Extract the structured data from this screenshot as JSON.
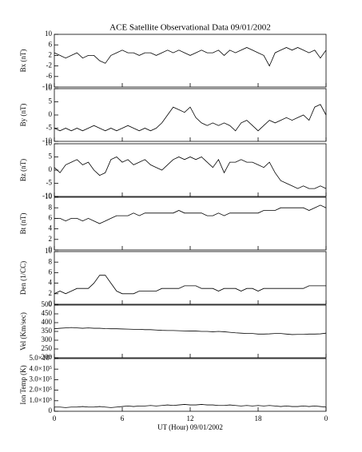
{
  "chart_data": [
    {
      "type": "line",
      "title": "ACE Satellite Observational Data  09/01/2002",
      "ylabel": "Bx (nT)",
      "color": "#000000",
      "x": [
        0,
        0.5,
        1,
        1.5,
        2,
        2.5,
        3,
        3.5,
        4,
        4.5,
        5,
        5.5,
        6,
        6.5,
        7,
        7.5,
        8,
        8.5,
        9,
        9.5,
        10,
        10.5,
        11,
        11.5,
        12,
        12.5,
        13,
        13.5,
        14,
        14.5,
        15,
        15.5,
        16,
        16.5,
        17,
        17.5,
        18,
        18.5,
        19,
        19.5,
        20,
        20.5,
        21,
        21.5,
        22,
        22.5,
        23,
        23.5,
        24
      ],
      "values": [
        3,
        2,
        1,
        2,
        3,
        1,
        2,
        2,
        0,
        -1,
        2,
        3,
        4,
        3,
        3,
        2,
        3,
        3,
        2,
        3,
        4,
        3,
        4,
        3,
        2,
        3,
        4,
        3,
        3,
        4,
        2,
        4,
        3,
        4,
        5,
        4,
        3,
        2,
        -2,
        3,
        4,
        5,
        4,
        5,
        4,
        3,
        4,
        1,
        4
      ],
      "xlim": [
        0,
        24
      ],
      "xticks": [
        0,
        6,
        12,
        18,
        24
      ],
      "ylim": [
        -10,
        10
      ],
      "yticks": [
        -10,
        -6,
        -2,
        2,
        6,
        10
      ]
    },
    {
      "type": "line",
      "ylabel": "By (nT)",
      "color": "#000000",
      "x": [
        0,
        0.5,
        1,
        1.5,
        2,
        2.5,
        3,
        3.5,
        4,
        4.5,
        5,
        5.5,
        6,
        6.5,
        7,
        7.5,
        8,
        8.5,
        9,
        9.5,
        10,
        10.5,
        11,
        11.5,
        12,
        12.5,
        13,
        13.5,
        14,
        14.5,
        15,
        15.5,
        16,
        16.5,
        17,
        17.5,
        18,
        18.5,
        19,
        19.5,
        20,
        20.5,
        21,
        21.5,
        22,
        22.5,
        23,
        23.5,
        24
      ],
      "values": [
        -5,
        -6,
        -5,
        -6,
        -5,
        -6,
        -5,
        -4,
        -5,
        -6,
        -5,
        -6,
        -5,
        -4,
        -5,
        -6,
        -5,
        -6,
        -5,
        -3,
        0,
        3,
        2,
        1,
        3,
        -1,
        -3,
        -4,
        -3,
        -4,
        -3,
        -4,
        -6,
        -3,
        -2,
        -4,
        -6,
        -4,
        -2,
        -3,
        -2,
        -1,
        -2,
        -1,
        0,
        -2,
        3,
        4,
        0
      ],
      "xlim": [
        0,
        24
      ],
      "xticks": [
        0,
        6,
        12,
        18,
        24
      ],
      "ylim": [
        -10,
        10
      ],
      "yticks": [
        -10,
        -5,
        0,
        5,
        10
      ]
    },
    {
      "type": "line",
      "ylabel": "Bz (nT)",
      "color": "#000000",
      "x": [
        0,
        0.5,
        1,
        1.5,
        2,
        2.5,
        3,
        3.5,
        4,
        4.5,
        5,
        5.5,
        6,
        6.5,
        7,
        7.5,
        8,
        8.5,
        9,
        9.5,
        10,
        10.5,
        11,
        11.5,
        12,
        12.5,
        13,
        13.5,
        14,
        14.5,
        15,
        15.5,
        16,
        16.5,
        17,
        17.5,
        18,
        18.5,
        19,
        19.5,
        20,
        20.5,
        21,
        21.5,
        22,
        22.5,
        23,
        23.5,
        24
      ],
      "values": [
        1,
        -1,
        2,
        3,
        4,
        2,
        3,
        0,
        -2,
        -1,
        4,
        5,
        3,
        4,
        2,
        3,
        4,
        2,
        1,
        0,
        2,
        4,
        5,
        4,
        5,
        4,
        5,
        3,
        1,
        4,
        -1,
        3,
        3,
        4,
        3,
        3,
        2,
        1,
        3,
        -1,
        -4,
        -5,
        -6,
        -7,
        -6,
        -7,
        -7,
        -6,
        -7
      ],
      "xlim": [
        0,
        24
      ],
      "xticks": [
        0,
        6,
        12,
        18,
        24
      ],
      "ylim": [
        -10,
        10
      ],
      "yticks": [
        -10,
        -5,
        0,
        5,
        10
      ]
    },
    {
      "type": "line",
      "ylabel": "Bt (nT)",
      "color": "#000000",
      "x": [
        0,
        0.5,
        1,
        1.5,
        2,
        2.5,
        3,
        3.5,
        4,
        4.5,
        5,
        5.5,
        6,
        6.5,
        7,
        7.5,
        8,
        8.5,
        9,
        9.5,
        10,
        10.5,
        11,
        11.5,
        12,
        12.5,
        13,
        13.5,
        14,
        14.5,
        15,
        15.5,
        16,
        16.5,
        17,
        17.5,
        18,
        18.5,
        19,
        19.5,
        20,
        20.5,
        21,
        21.5,
        22,
        22.5,
        23,
        23.5,
        24
      ],
      "values": [
        6,
        6,
        5.5,
        6,
        6,
        5.5,
        6,
        5.5,
        5,
        5.5,
        6,
        6.5,
        6.5,
        6.5,
        7,
        6.5,
        7,
        7,
        7,
        7,
        7,
        7,
        7.5,
        7,
        7,
        7,
        7,
        6.5,
        6.5,
        7,
        6.5,
        7,
        7,
        7,
        7,
        7,
        7,
        7.5,
        7.5,
        7.5,
        8,
        8,
        8,
        8,
        8,
        7.5,
        8,
        8.5,
        8
      ],
      "xlim": [
        0,
        24
      ],
      "xticks": [
        0,
        6,
        12,
        18,
        24
      ],
      "ylim": [
        0,
        10
      ],
      "yticks": [
        0,
        2,
        4,
        6,
        8,
        10
      ]
    },
    {
      "type": "line",
      "ylabel": "Den (1/CC)",
      "color": "#000000",
      "x": [
        0,
        0.5,
        1,
        1.5,
        2,
        2.5,
        3,
        3.5,
        4,
        4.5,
        5,
        5.5,
        6,
        6.5,
        7,
        7.5,
        8,
        8.5,
        9,
        9.5,
        10,
        10.5,
        11,
        11.5,
        12,
        12.5,
        13,
        13.5,
        14,
        14.5,
        15,
        15.5,
        16,
        16.5,
        17,
        17.5,
        18,
        18.5,
        19,
        19.5,
        20,
        20.5,
        21,
        21.5,
        22,
        22.5,
        23,
        23.5,
        24
      ],
      "values": [
        2,
        2.5,
        2,
        2.5,
        3,
        3,
        3,
        4,
        5.5,
        5.5,
        4,
        2.5,
        2,
        2,
        2,
        2.5,
        2.5,
        2.5,
        2.5,
        3,
        3,
        3,
        3,
        3.5,
        3.5,
        3.5,
        3,
        3,
        3,
        2.5,
        3,
        3,
        3,
        2.5,
        3,
        3,
        2.5,
        3,
        3,
        3,
        3,
        3,
        3,
        3,
        3,
        3.5,
        3.5,
        3.5,
        3.5
      ],
      "xlim": [
        0,
        24
      ],
      "xticks": [
        0,
        6,
        12,
        18,
        24
      ],
      "ylim": [
        0,
        10
      ],
      "yticks": [
        0,
        2,
        4,
        6,
        8,
        10
      ]
    },
    {
      "type": "line",
      "ylabel": "Vel (Km/sec)",
      "color": "#000000",
      "x": [
        0,
        0.5,
        1,
        1.5,
        2,
        2.5,
        3,
        3.5,
        4,
        4.5,
        5,
        5.5,
        6,
        6.5,
        7,
        7.5,
        8,
        8.5,
        9,
        9.5,
        10,
        10.5,
        11,
        11.5,
        12,
        12.5,
        13,
        13.5,
        14,
        14.5,
        15,
        15.5,
        16,
        16.5,
        17,
        17.5,
        18,
        18.5,
        19,
        19.5,
        20,
        20.5,
        21,
        21.5,
        22,
        22.5,
        23,
        23.5,
        24
      ],
      "values": [
        365,
        368,
        370,
        372,
        370,
        368,
        370,
        368,
        368,
        366,
        365,
        365,
        364,
        363,
        362,
        362,
        360,
        360,
        358,
        356,
        355,
        355,
        354,
        353,
        352,
        352,
        350,
        350,
        348,
        350,
        348,
        345,
        342,
        340,
        338,
        338,
        335,
        335,
        336,
        338,
        338,
        335,
        332,
        333,
        333,
        335,
        335,
        336,
        340
      ],
      "xlim": [
        0,
        24
      ],
      "xticks": [
        0,
        6,
        12,
        18,
        24
      ],
      "ylim": [
        200,
        500
      ],
      "yticks": [
        200,
        250,
        300,
        350,
        400,
        450,
        500
      ]
    },
    {
      "type": "line",
      "ylabel": "Ion Temp (K)",
      "xlabel": "UT (Hour)  09/01/2002",
      "color": "#000000",
      "x": [
        0,
        0.5,
        1,
        1.5,
        2,
        2.5,
        3,
        3.5,
        4,
        4.5,
        5,
        5.5,
        6,
        6.5,
        7,
        7.5,
        8,
        8.5,
        9,
        9.5,
        10,
        10.5,
        11,
        11.5,
        12,
        12.5,
        13,
        13.5,
        14,
        14.5,
        15,
        15.5,
        16,
        16.5,
        17,
        17.5,
        18,
        18.5,
        19,
        19.5,
        20,
        20.5,
        21,
        21.5,
        22,
        22.5,
        23,
        23.5,
        24
      ],
      "values": [
        40000,
        40000,
        35000,
        40000,
        40000,
        45000,
        40000,
        40000,
        45000,
        40000,
        35000,
        40000,
        45000,
        50000,
        45000,
        50000,
        50000,
        55000,
        50000,
        55000,
        60000,
        55000,
        60000,
        65000,
        60000,
        60000,
        65000,
        60000,
        60000,
        55000,
        55000,
        60000,
        55000,
        50000,
        55000,
        50000,
        55000,
        50000,
        55000,
        50000,
        45000,
        50000,
        45000,
        45000,
        50000,
        45000,
        50000,
        45000,
        40000
      ],
      "xlim": [
        0,
        24
      ],
      "xticks": [
        0,
        6,
        12,
        18,
        {
          "value": 24,
          "label": "0"
        }
      ],
      "ylim": [
        0,
        500000
      ],
      "yticks": [
        0,
        {
          "value": 100000,
          "label": "1.0×10⁵"
        },
        {
          "value": 200000,
          "label": "2.0×10⁵"
        },
        {
          "value": 300000,
          "label": "3.0×10⁵"
        },
        {
          "value": 400000,
          "label": "4.0×10⁵"
        },
        {
          "value": 500000,
          "label": "5.0×10⁵"
        }
      ]
    }
  ]
}
